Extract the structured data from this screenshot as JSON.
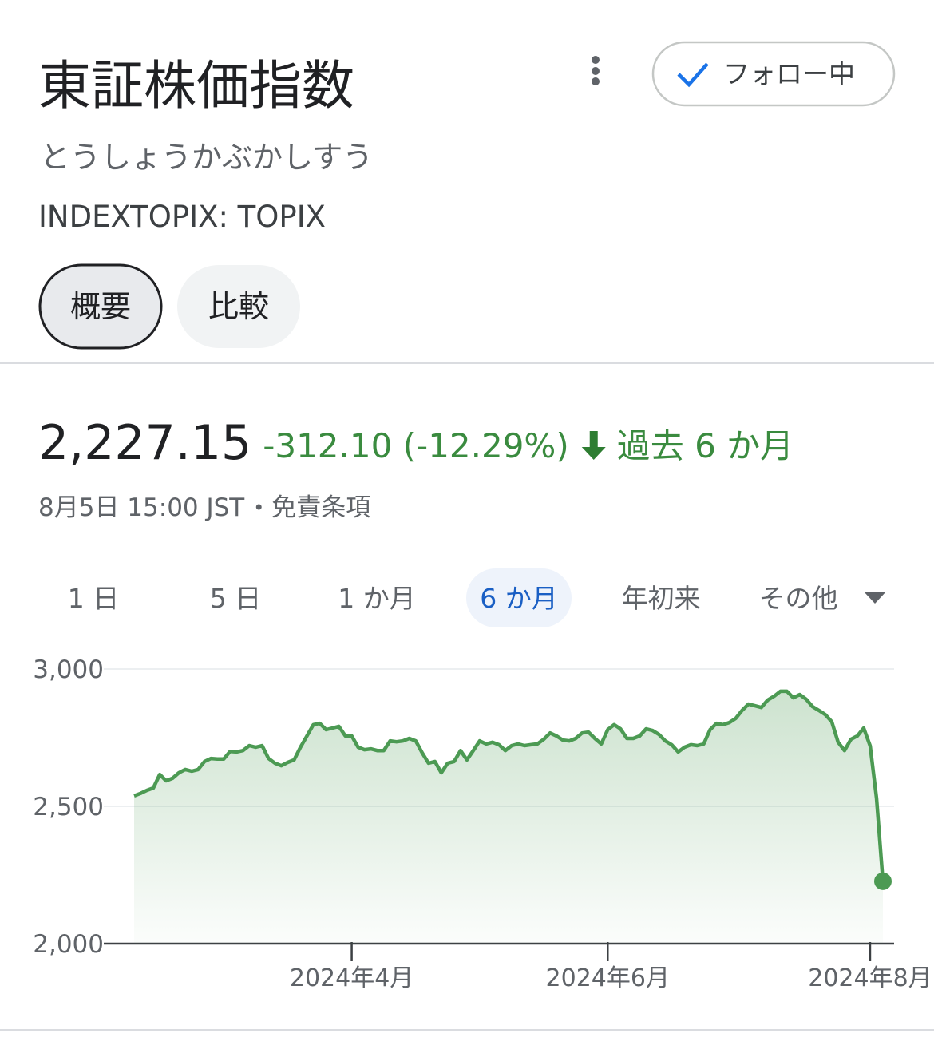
{
  "header": {
    "title": "東証株価指数",
    "reading": "とうしょうかぶかしすう",
    "ticker": "INDEXTOPIX: TOPIX",
    "follow": "フォロー中",
    "tabs": [
      "概要",
      "比較"
    ],
    "selected_tab": 0
  },
  "quote": {
    "price": "2,227.15",
    "change": "-312.10 (-12.29%)",
    "period": "過去 6 か月",
    "timestamp": "8月5日 15:00 JST",
    "disclaimer": "免責条項"
  },
  "ranges": [
    "1 日",
    "5 日",
    "1 か月",
    "6 か月",
    "年初来",
    "その他"
  ],
  "selected_range": 3,
  "chart_data": {
    "type": "line",
    "x": [
      null,
      null,
      null,
      null,
      null,
      null,
      null,
      null,
      null,
      null,
      null,
      null,
      null,
      null,
      null,
      null,
      null,
      null,
      null,
      null,
      null,
      null,
      null,
      null,
      null,
      null,
      null,
      null,
      null,
      null,
      null,
      null,
      null,
      null,
      "2024年4月",
      null,
      null,
      null,
      null,
      null,
      null,
      null,
      null,
      null,
      null,
      null,
      null,
      null,
      null,
      null,
      null,
      null,
      null,
      null,
      null,
      null,
      null,
      null,
      null,
      null,
      null,
      null,
      null,
      null,
      null,
      null,
      null,
      null,
      null,
      null,
      null,
      null,
      null,
      null,
      "2024年6月",
      null,
      null,
      null,
      null,
      null,
      null,
      null,
      null,
      null,
      null,
      null,
      null,
      null,
      null,
      null,
      null,
      null,
      null,
      null,
      null,
      null,
      null,
      null,
      null,
      null,
      null,
      null,
      null,
      null,
      null,
      null,
      null,
      null,
      null,
      null,
      null,
      null,
      null,
      null,
      null,
      "2024年8月",
      null,
      null
    ],
    "series": [
      {
        "color": "#4c9a53",
        "values": [
          2538,
          2547,
          2558,
          2567,
          2616,
          2593,
          2602,
          2622,
          2634,
          2628,
          2634,
          2663,
          2674,
          2672,
          2672,
          2700,
          2698,
          2703,
          2721,
          2715,
          2721,
          2674,
          2657,
          2648,
          2660,
          2669,
          2715,
          2756,
          2797,
          2802,
          2779,
          2785,
          2791,
          2756,
          2756,
          2715,
          2706,
          2709,
          2703,
          2703,
          2738,
          2735,
          2738,
          2747,
          2738,
          2695,
          2657,
          2663,
          2622,
          2657,
          2663,
          2703,
          2669,
          2703,
          2738,
          2727,
          2733,
          2724,
          2703,
          2721,
          2727,
          2721,
          2724,
          2727,
          2744,
          2767,
          2756,
          2741,
          2738,
          2747,
          2767,
          2770,
          2747,
          2727,
          2779,
          2797,
          2782,
          2747,
          2747,
          2756,
          2782,
          2776,
          2762,
          2738,
          2724,
          2698,
          2715,
          2724,
          2721,
          2727,
          2779,
          2802,
          2797,
          2805,
          2820,
          2849,
          2872,
          2866,
          2860,
          2887,
          2901,
          2919,
          2919,
          2895,
          2907,
          2890,
          2863,
          2849,
          2834,
          2808,
          2733,
          2703,
          2744,
          2756,
          2785,
          2720,
          2529,
          2227.15
        ]
      }
    ],
    "ylim": [
      2000,
      3000
    ],
    "yticks": [
      {
        "value": 2000,
        "label": "2,000"
      },
      {
        "value": 2500,
        "label": "2,500"
      },
      {
        "value": 3000,
        "label": "3,000"
      }
    ],
    "grid": true
  }
}
